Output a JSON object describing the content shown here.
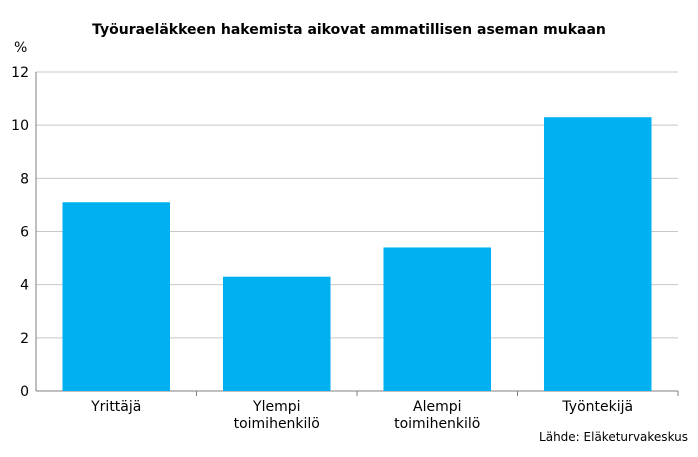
{
  "chart_data": {
    "type": "bar",
    "title": "Työuraeläkkeen hakemista aikovat ammatillisen aseman mukaan",
    "ylabel": "%",
    "categories": [
      [
        "Yrittäjä"
      ],
      [
        "Ylempi",
        "toimihenkilö"
      ],
      [
        "Alempi",
        "toimihenkilö"
      ],
      [
        "Työntekijä"
      ]
    ],
    "values": [
      7.1,
      4.3,
      5.4,
      10.3
    ],
    "ylim": [
      0,
      12
    ],
    "yticks": [
      0,
      2,
      4,
      6,
      8,
      10,
      12
    ],
    "grid": true,
    "bar_color": "#00B0F0",
    "grid_color": "#C8C8C8",
    "axis_color": "#7F7F7F"
  },
  "source": "Lähde: Eläketurvakeskus"
}
